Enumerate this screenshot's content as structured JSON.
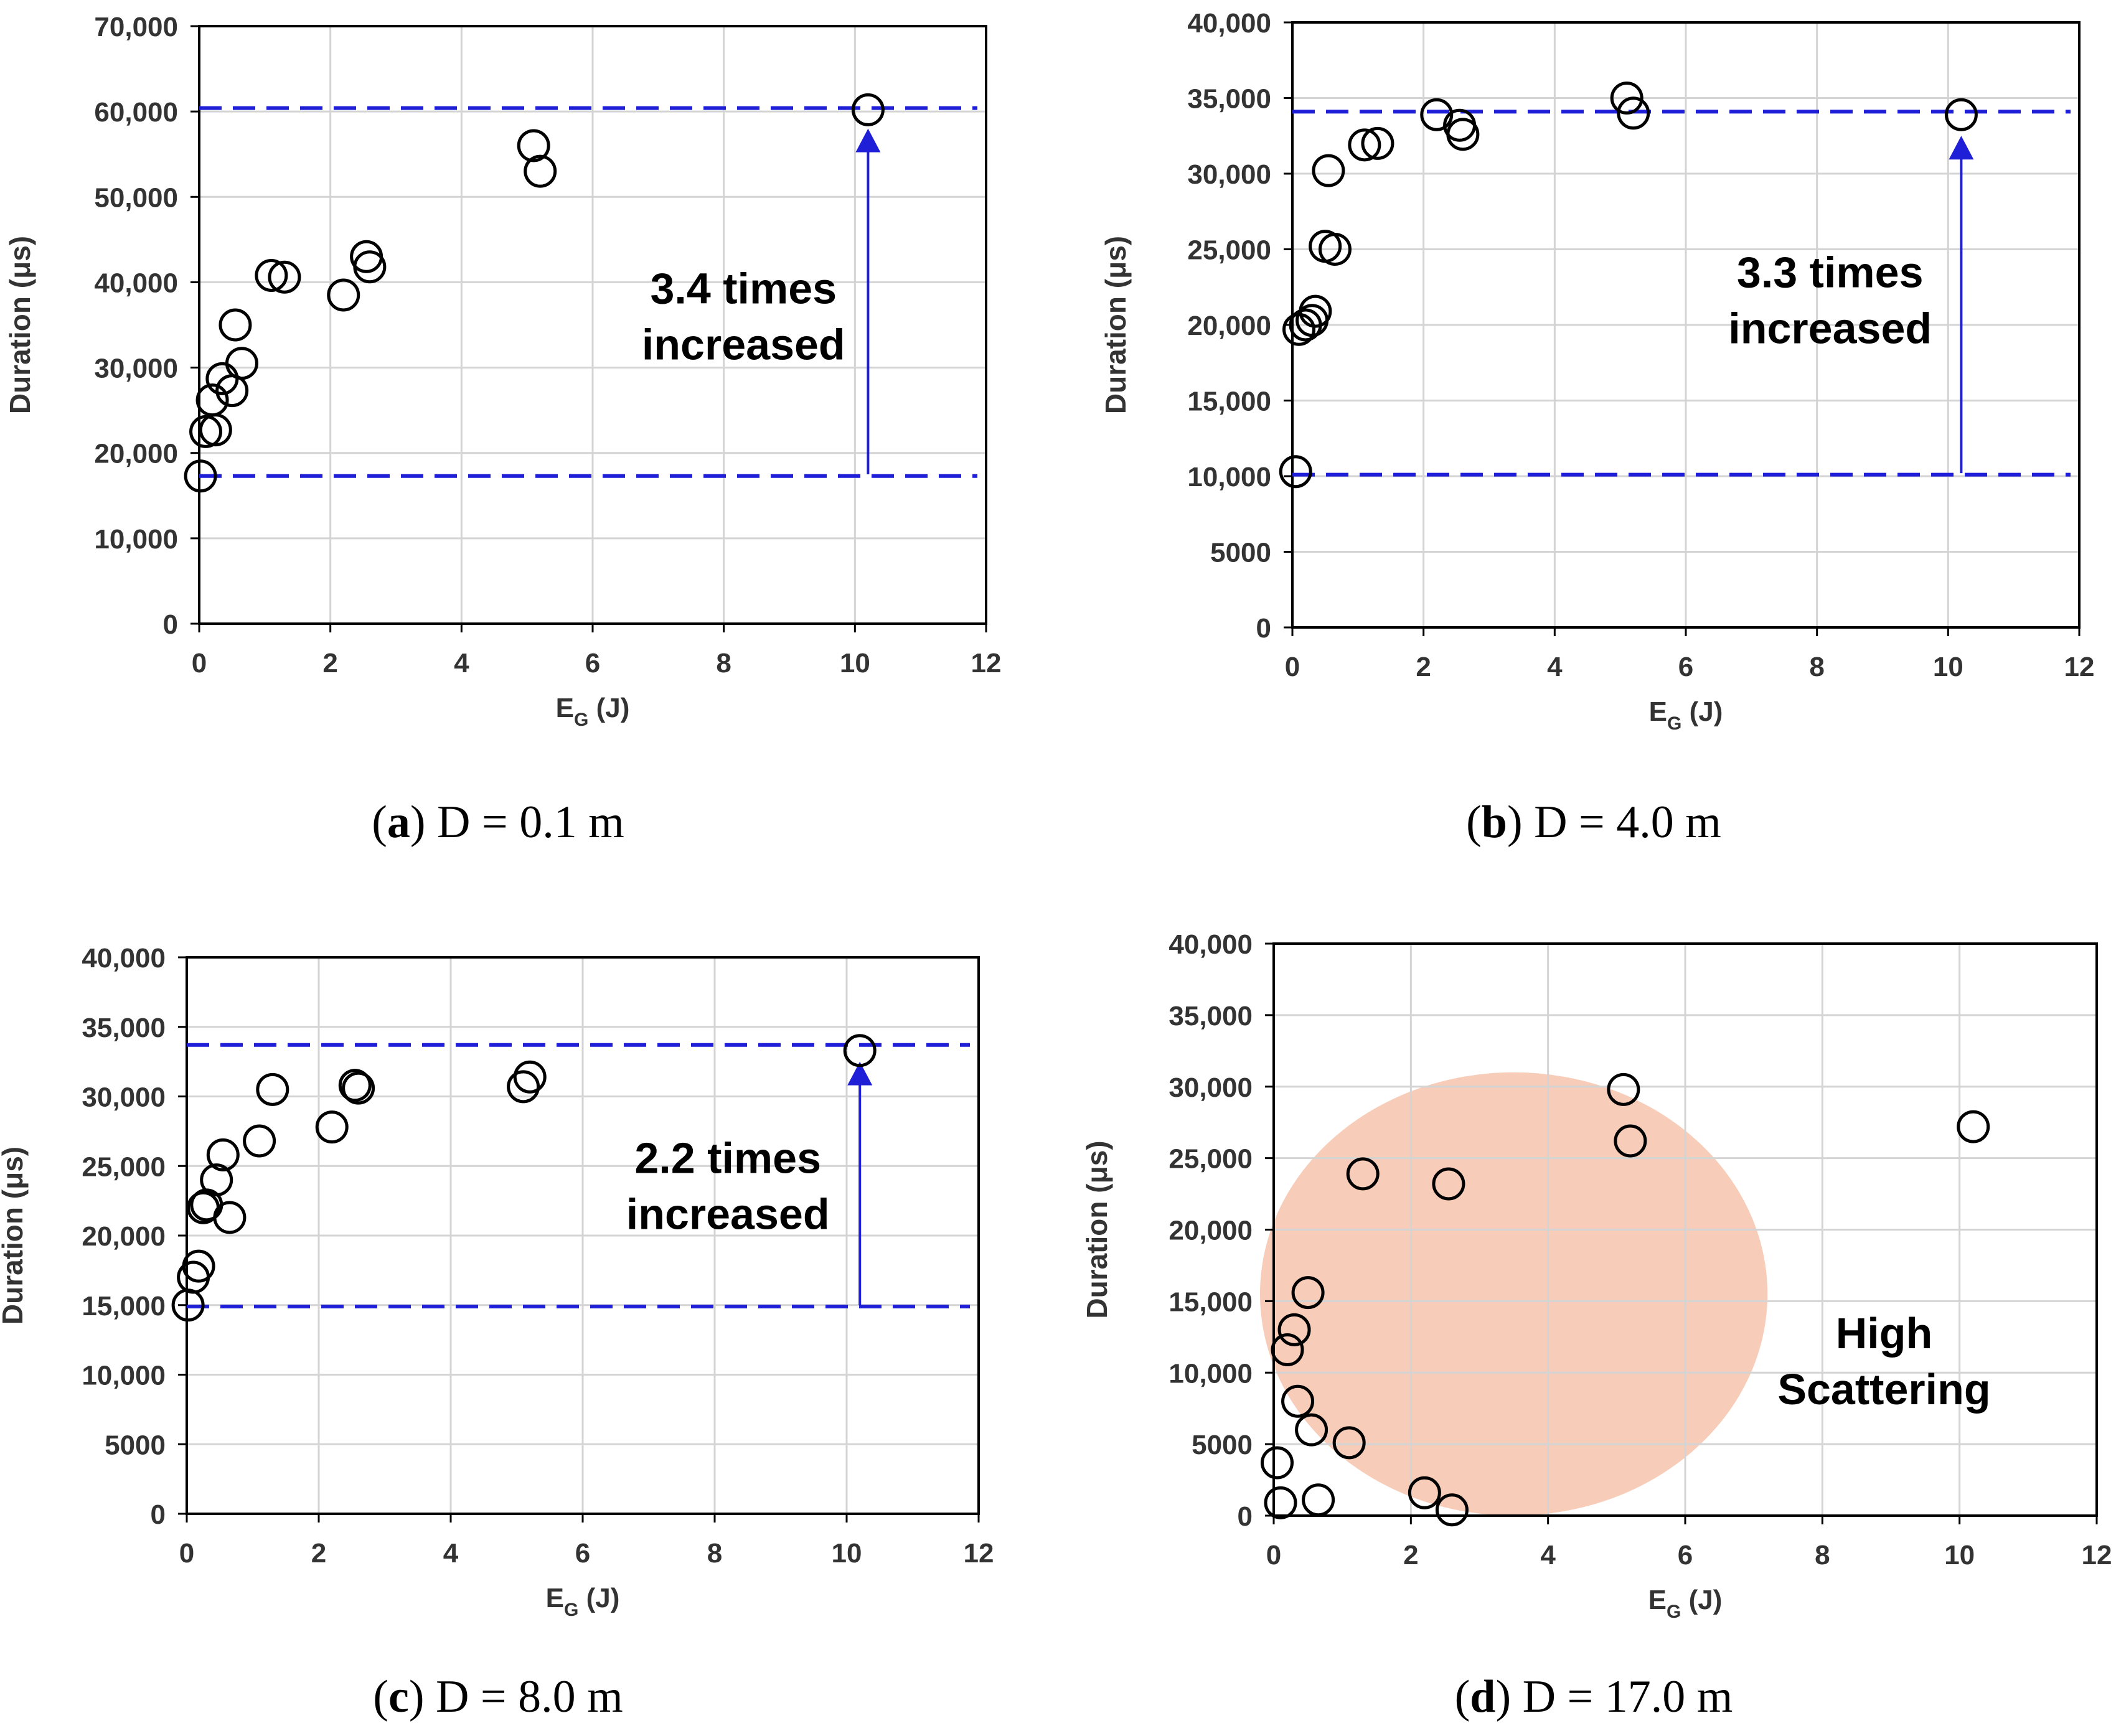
{
  "figure": {
    "colors": {
      "marker": "#000000",
      "guide": "#1f1fd8",
      "grid": "#d4d4d4",
      "frame": "#000000",
      "highlight": "#f6c4ad"
    }
  },
  "chart_data": [
    {
      "id": "a",
      "type": "scatter",
      "panel_letter": "a",
      "caption_text": "D = 0.1 m",
      "xlabel_main": "E",
      "xlabel_sub": "G",
      "xlabel_unit": " (J)",
      "xlabel": "E_G (J)",
      "ylabel": "Duration (μs)",
      "xlim": [
        0,
        12
      ],
      "ylim": [
        0,
        70000
      ],
      "xticks": [
        0,
        2,
        4,
        6,
        8,
        10,
        12
      ],
      "yticks": [
        0,
        10000,
        20000,
        30000,
        40000,
        50000,
        60000,
        70000
      ],
      "ytick_labels": [
        "0",
        "10,000",
        "20,000",
        "30,000",
        "40,000",
        "50,000",
        "60,000",
        "70,000"
      ],
      "grid": true,
      "points": [
        {
          "x": 0.02,
          "y": 17300
        },
        {
          "x": 0.1,
          "y": 22500
        },
        {
          "x": 0.2,
          "y": 26200
        },
        {
          "x": 0.25,
          "y": 22700
        },
        {
          "x": 0.35,
          "y": 28700
        },
        {
          "x": 0.5,
          "y": 27300
        },
        {
          "x": 0.55,
          "y": 35000
        },
        {
          "x": 0.65,
          "y": 30500
        },
        {
          "x": 1.1,
          "y": 40800
        },
        {
          "x": 1.3,
          "y": 40600
        },
        {
          "x": 2.2,
          "y": 38500
        },
        {
          "x": 2.55,
          "y": 43000
        },
        {
          "x": 2.6,
          "y": 41800
        },
        {
          "x": 5.1,
          "y": 56000
        },
        {
          "x": 5.2,
          "y": 53000
        },
        {
          "x": 10.2,
          "y": 60200
        }
      ],
      "guides": {
        "upper": 60400,
        "lower": 17300,
        "arrow_x": 10.2,
        "arrow_from": 17500,
        "arrow_to": 58000
      },
      "annotation": [
        "3.4 times",
        "increased"
      ],
      "annotation_pos": {
        "x": 8.3,
        "y": 37500
      }
    },
    {
      "id": "b",
      "type": "scatter",
      "panel_letter": "b",
      "caption_text": "D = 4.0 m",
      "xlabel_main": "E",
      "xlabel_sub": "G",
      "xlabel_unit": " (J)",
      "xlabel": "E_G (J)",
      "ylabel": "Duration (μs)",
      "xlim": [
        0,
        12
      ],
      "ylim": [
        0,
        40000
      ],
      "xticks": [
        0,
        2,
        4,
        6,
        8,
        10,
        12
      ],
      "yticks": [
        0,
        5000,
        10000,
        15000,
        20000,
        25000,
        30000,
        35000,
        40000
      ],
      "ytick_labels": [
        "0",
        "5000",
        "10,000",
        "15,000",
        "20,000",
        "25,000",
        "30,000",
        "35,000",
        "40,000"
      ],
      "grid": true,
      "points": [
        {
          "x": 0.05,
          "y": 10300
        },
        {
          "x": 0.1,
          "y": 19700
        },
        {
          "x": 0.2,
          "y": 20000
        },
        {
          "x": 0.3,
          "y": 20300
        },
        {
          "x": 0.35,
          "y": 20900
        },
        {
          "x": 0.5,
          "y": 25200
        },
        {
          "x": 0.55,
          "y": 30200
        },
        {
          "x": 0.65,
          "y": 25000
        },
        {
          "x": 1.1,
          "y": 31900
        },
        {
          "x": 1.3,
          "y": 32000
        },
        {
          "x": 2.2,
          "y": 33900
        },
        {
          "x": 2.55,
          "y": 33200
        },
        {
          "x": 2.6,
          "y": 32600
        },
        {
          "x": 5.1,
          "y": 35000
        },
        {
          "x": 5.2,
          "y": 34000
        },
        {
          "x": 10.2,
          "y": 33900
        }
      ],
      "guides": {
        "upper": 34100,
        "lower": 10100,
        "arrow_x": 10.2,
        "arrow_from": 10200,
        "arrow_to": 32500
      },
      "annotation": [
        "3.3 times",
        "increased"
      ],
      "annotation_pos": {
        "x": 8.2,
        "y": 22500
      }
    },
    {
      "id": "c",
      "type": "scatter",
      "panel_letter": "c",
      "caption_text": "D = 8.0 m",
      "xlabel_main": "E",
      "xlabel_sub": "G",
      "xlabel_unit": " (J)",
      "xlabel": "E_G (J)",
      "ylabel": "Duration (μs)",
      "xlim": [
        0,
        12
      ],
      "ylim": [
        0,
        40000
      ],
      "xticks": [
        0,
        2,
        4,
        6,
        8,
        10,
        12
      ],
      "yticks": [
        0,
        5000,
        10000,
        15000,
        20000,
        25000,
        30000,
        35000,
        40000
      ],
      "ytick_labels": [
        "0",
        "5000",
        "10,000",
        "15,000",
        "20,000",
        "25,000",
        "30,000",
        "35,000",
        "40,000"
      ],
      "grid": true,
      "points": [
        {
          "x": 0.02,
          "y": 15000
        },
        {
          "x": 0.1,
          "y": 17000
        },
        {
          "x": 0.18,
          "y": 17800
        },
        {
          "x": 0.25,
          "y": 22000
        },
        {
          "x": 0.3,
          "y": 22200
        },
        {
          "x": 0.45,
          "y": 24000
        },
        {
          "x": 0.55,
          "y": 25800
        },
        {
          "x": 0.65,
          "y": 21300
        },
        {
          "x": 1.1,
          "y": 26800
        },
        {
          "x": 1.3,
          "y": 30500
        },
        {
          "x": 2.2,
          "y": 27800
        },
        {
          "x": 2.55,
          "y": 30800
        },
        {
          "x": 2.6,
          "y": 30600
        },
        {
          "x": 5.1,
          "y": 30700
        },
        {
          "x": 5.2,
          "y": 31400
        },
        {
          "x": 10.2,
          "y": 33300
        }
      ],
      "guides": {
        "upper": 33700,
        "lower": 14900,
        "arrow_x": 10.2,
        "arrow_from": 15000,
        "arrow_to": 32500
      },
      "annotation": [
        "2.2 times",
        "increased"
      ],
      "annotation_pos": {
        "x": 8.2,
        "y": 24500
      }
    },
    {
      "id": "d",
      "type": "scatter",
      "panel_letter": "d",
      "caption_text": "D = 17.0 m",
      "xlabel_main": "E",
      "xlabel_sub": "G",
      "xlabel_unit": " (J)",
      "xlabel": "E_G (J)",
      "ylabel": "Duration (μs)",
      "xlim": [
        0,
        12
      ],
      "ylim": [
        0,
        40000
      ],
      "xticks": [
        0,
        2,
        4,
        6,
        8,
        10,
        12
      ],
      "yticks": [
        0,
        5000,
        10000,
        15000,
        20000,
        25000,
        30000,
        35000,
        40000
      ],
      "ytick_labels": [
        "0",
        "5000",
        "10,000",
        "15,000",
        "20,000",
        "25,000",
        "30,000",
        "35,000",
        "40,000"
      ],
      "grid": true,
      "points": [
        {
          "x": 0.05,
          "y": 3700
        },
        {
          "x": 0.1,
          "y": 900
        },
        {
          "x": 0.2,
          "y": 11600
        },
        {
          "x": 0.3,
          "y": 13000
        },
        {
          "x": 0.35,
          "y": 8000
        },
        {
          "x": 0.5,
          "y": 15600
        },
        {
          "x": 0.55,
          "y": 6000
        },
        {
          "x": 0.65,
          "y": 1100
        },
        {
          "x": 1.1,
          "y": 5100
        },
        {
          "x": 1.3,
          "y": 23900
        },
        {
          "x": 2.2,
          "y": 1600
        },
        {
          "x": 2.55,
          "y": 23200
        },
        {
          "x": 2.6,
          "y": 400
        },
        {
          "x": 5.1,
          "y": 29800
        },
        {
          "x": 5.2,
          "y": 26200
        },
        {
          "x": 10.2,
          "y": 27200
        }
      ],
      "highlight_region": {
        "cx": 3.5,
        "cy": 15500,
        "rx": 3.7,
        "ry": 15500
      },
      "annotation": [
        "High",
        "Scattering"
      ],
      "annotation_pos": {
        "x": 8.9,
        "y": 11700
      }
    }
  ]
}
